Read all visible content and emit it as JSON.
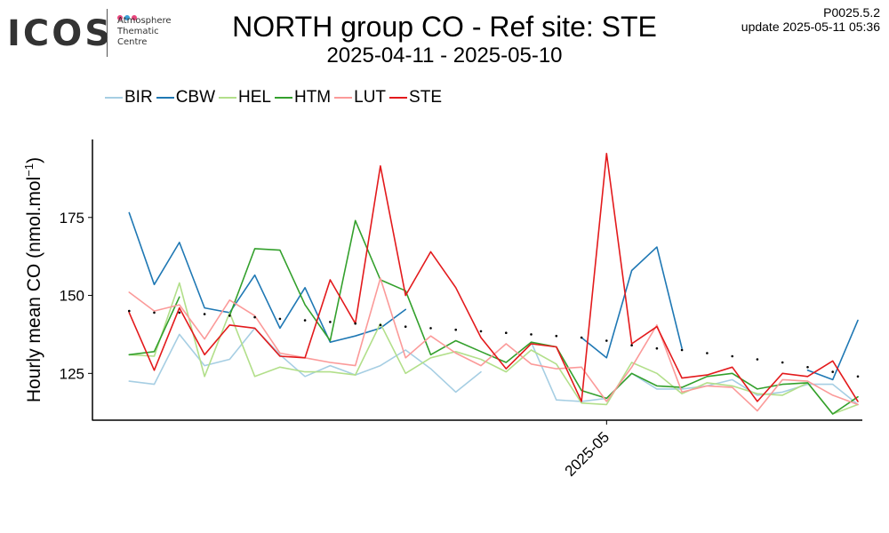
{
  "header": {
    "logo_text": "ICOS",
    "logo_subtitle": [
      "Atmosphere",
      "Thematic",
      "Centre"
    ],
    "logo_dot_colors": [
      "#e8457c",
      "#3aa0d8",
      "#e8457c"
    ],
    "title": "NORTH group CO - Ref site: STE",
    "subtitle": "2025-04-11 - 2025-05-10",
    "version": "P0025.5.2",
    "update": "update  2025-05-11 05:36"
  },
  "chart_data": {
    "type": "line",
    "title": "NORTH group CO - Ref site: STE",
    "subtitle": "2025-04-11 - 2025-05-10",
    "xlabel": "",
    "ylabel_main": "Hourly mean  CO (nmol.mol",
    "ylabel_sup": "−1",
    "ylabel_end": ")",
    "x_range": [
      "2025-04-11",
      "2025-05-11"
    ],
    "ylim": [
      110,
      200
    ],
    "yticks": [
      125,
      150,
      175
    ],
    "xticks": [
      {
        "date": "2025-05-01",
        "label": "2025-05"
      }
    ],
    "legend_position": "top-left",
    "grid": false,
    "series": [
      {
        "name": "BIR",
        "color": "#a6cee3",
        "points": [
          [
            "2025-04-12",
            122.5
          ],
          [
            "2025-04-13",
            121.5
          ],
          [
            "2025-04-14",
            137.5
          ],
          [
            "2025-04-15",
            127.5
          ],
          [
            "2025-04-16",
            129.5
          ],
          [
            "2025-04-17",
            139.5
          ],
          [
            "2025-04-18",
            131
          ],
          [
            "2025-04-19",
            124
          ],
          [
            "2025-04-20",
            127.5
          ],
          [
            "2025-04-21",
            124.5
          ],
          [
            "2025-04-22",
            127.5
          ],
          [
            "2025-04-23",
            132.5
          ],
          [
            "2025-04-24",
            126.5
          ],
          [
            "2025-04-25",
            119
          ],
          [
            "2025-04-26",
            125.5
          ],
          null,
          [
            "2025-04-28",
            135
          ],
          [
            "2025-04-29",
            116.5
          ],
          [
            "2025-04-30",
            116
          ],
          [
            "2025-05-01",
            117
          ],
          [
            "2025-05-02",
            125
          ],
          [
            "2025-05-03",
            120
          ],
          [
            "2025-05-04",
            120
          ],
          [
            "2025-05-05",
            121
          ],
          [
            "2025-05-06",
            123
          ],
          [
            "2025-05-07",
            118
          ],
          [
            "2025-05-08",
            119
          ],
          [
            "2025-05-09",
            121.5
          ],
          [
            "2025-05-10",
            121.5
          ],
          [
            "2025-05-11",
            115
          ]
        ]
      },
      {
        "name": "CBW",
        "color": "#1f78b4",
        "points": [
          [
            "2025-04-12",
            176.5
          ],
          [
            "2025-04-13",
            153.5
          ],
          [
            "2025-04-14",
            167
          ],
          [
            "2025-04-15",
            146
          ],
          [
            "2025-04-16",
            144.5
          ],
          [
            "2025-04-17",
            156.5
          ],
          [
            "2025-04-18",
            139.5
          ],
          [
            "2025-04-19",
            152.5
          ],
          [
            "2025-04-20",
            135
          ],
          [
            "2025-04-21",
            137
          ],
          [
            "2025-04-22",
            139.5
          ],
          [
            "2025-04-23",
            145.5
          ],
          null,
          null,
          null,
          null,
          null,
          null,
          [
            "2025-04-30",
            136.5
          ],
          [
            "2025-05-01",
            130
          ],
          [
            "2025-05-02",
            158
          ],
          [
            "2025-05-03",
            165.5
          ],
          [
            "2025-05-04",
            133
          ],
          null,
          null,
          null,
          null,
          null,
          [
            "2025-05-09",
            126
          ],
          [
            "2025-05-10",
            123
          ],
          [
            "2025-05-11",
            142
          ]
        ]
      },
      {
        "name": "HEL",
        "color": "#b2df8a",
        "points": [
          [
            "2025-04-12",
            131
          ],
          [
            "2025-04-13",
            130.5
          ],
          [
            "2025-04-14",
            154
          ],
          [
            "2025-04-15",
            124
          ],
          [
            "2025-04-16",
            144.5
          ],
          [
            "2025-04-17",
            124
          ],
          [
            "2025-04-18",
            127
          ],
          [
            "2025-04-19",
            125.5
          ],
          [
            "2025-04-20",
            125.5
          ],
          [
            "2025-04-21",
            124.5
          ],
          [
            "2025-04-22",
            141
          ],
          [
            "2025-04-23",
            125
          ],
          [
            "2025-04-24",
            130
          ],
          [
            "2025-04-25",
            132
          ],
          [
            "2025-04-26",
            129.5
          ],
          [
            "2025-04-27",
            125.5
          ],
          [
            "2025-04-28",
            132.5
          ],
          [
            "2025-04-29",
            128
          ],
          [
            "2025-04-30",
            115.5
          ],
          [
            "2025-05-01",
            115
          ],
          [
            "2025-05-02",
            128.5
          ],
          [
            "2025-05-03",
            125
          ],
          [
            "2025-05-04",
            118.5
          ],
          [
            "2025-05-05",
            122
          ],
          [
            "2025-05-06",
            121
          ],
          [
            "2025-05-07",
            118.5
          ],
          [
            "2025-05-08",
            118
          ],
          [
            "2025-05-09",
            122
          ],
          [
            "2025-05-10",
            112
          ],
          [
            "2025-05-11",
            115
          ]
        ]
      },
      {
        "name": "HTM",
        "color": "#33a02c",
        "points": [
          [
            "2025-04-12",
            131
          ],
          [
            "2025-04-13",
            132
          ],
          [
            "2025-04-14",
            149.5
          ],
          null,
          [
            "2025-04-16",
            143.5
          ],
          [
            "2025-04-17",
            165
          ],
          [
            "2025-04-18",
            164.5
          ],
          [
            "2025-04-19",
            147
          ],
          [
            "2025-04-20",
            135.5
          ],
          [
            "2025-04-21",
            174
          ],
          [
            "2025-04-22",
            155
          ],
          [
            "2025-04-23",
            151.5
          ],
          [
            "2025-04-24",
            131
          ],
          [
            "2025-04-25",
            135.5
          ],
          [
            "2025-04-26",
            132
          ],
          [
            "2025-04-27",
            128.5
          ],
          [
            "2025-04-28",
            135
          ],
          [
            "2025-04-29",
            133.5
          ],
          [
            "2025-04-30",
            119.5
          ],
          [
            "2025-05-01",
            117
          ],
          [
            "2025-05-02",
            125
          ],
          [
            "2025-05-03",
            121
          ],
          [
            "2025-05-04",
            120.5
          ],
          [
            "2025-05-05",
            124
          ],
          [
            "2025-05-06",
            125
          ],
          [
            "2025-05-07",
            120
          ],
          [
            "2025-05-08",
            121.5
          ],
          [
            "2025-05-09",
            122
          ],
          [
            "2025-05-10",
            112
          ],
          [
            "2025-05-11",
            117.5
          ]
        ]
      },
      {
        "name": "LUT",
        "color": "#fb9a99",
        "points": [
          [
            "2025-04-12",
            151
          ],
          [
            "2025-04-13",
            145
          ],
          [
            "2025-04-14",
            147
          ],
          [
            "2025-04-15",
            136
          ],
          [
            "2025-04-16",
            148.5
          ],
          [
            "2025-04-17",
            143.5
          ],
          [
            "2025-04-18",
            131.5
          ],
          [
            "2025-04-19",
            130
          ],
          [
            "2025-04-20",
            128.5
          ],
          [
            "2025-04-21",
            127.5
          ],
          [
            "2025-04-22",
            155.5
          ],
          [
            "2025-04-23",
            130
          ],
          [
            "2025-04-24",
            137
          ],
          [
            "2025-04-25",
            131.5
          ],
          [
            "2025-04-26",
            127.5
          ],
          [
            "2025-04-27",
            134.5
          ],
          [
            "2025-04-28",
            128
          ],
          [
            "2025-04-29",
            126.5
          ],
          [
            "2025-04-30",
            127
          ],
          [
            "2025-05-01",
            116
          ],
          [
            "2025-05-02",
            127
          ],
          [
            "2025-05-03",
            140.5
          ],
          [
            "2025-05-04",
            119
          ],
          [
            "2025-05-05",
            121
          ],
          [
            "2025-05-06",
            120.5
          ],
          [
            "2025-05-07",
            113
          ],
          [
            "2025-05-08",
            123
          ],
          [
            "2025-05-09",
            122.5
          ],
          [
            "2025-05-10",
            118
          ],
          [
            "2025-05-11",
            115
          ]
        ]
      },
      {
        "name": "STE",
        "color": "#e31a1c",
        "points": [
          [
            "2025-04-12",
            144.5
          ],
          [
            "2025-04-13",
            126
          ],
          [
            "2025-04-14",
            146
          ],
          [
            "2025-04-15",
            131
          ],
          [
            "2025-04-16",
            140.5
          ],
          [
            "2025-04-17",
            139.5
          ],
          [
            "2025-04-18",
            130.5
          ],
          [
            "2025-04-19",
            130
          ],
          [
            "2025-04-20",
            155
          ],
          [
            "2025-04-21",
            141
          ],
          [
            "2025-04-22",
            191.5
          ],
          [
            "2025-04-23",
            150
          ],
          [
            "2025-04-24",
            164
          ],
          [
            "2025-04-25",
            152.5
          ],
          [
            "2025-04-26",
            136.5
          ],
          [
            "2025-04-27",
            126.5
          ],
          [
            "2025-04-28",
            134.5
          ],
          [
            "2025-04-29",
            133.5
          ],
          [
            "2025-04-30",
            116
          ],
          [
            "2025-05-01",
            195.5
          ],
          [
            "2025-05-02",
            134.5
          ],
          [
            "2025-05-03",
            140
          ],
          [
            "2025-05-04",
            123.5
          ],
          [
            "2025-05-05",
            124.5
          ],
          [
            "2025-05-06",
            127
          ],
          [
            "2025-05-07",
            116
          ],
          [
            "2025-05-08",
            125
          ],
          [
            "2025-05-09",
            124
          ],
          [
            "2025-05-10",
            129
          ],
          [
            "2025-05-11",
            116
          ]
        ]
      }
    ],
    "reference_dots": {
      "color": "#000000",
      "points": [
        [
          "2025-04-12",
          145
        ],
        [
          "2025-04-13",
          144.5
        ],
        [
          "2025-04-14",
          144.5
        ],
        [
          "2025-04-15",
          144
        ],
        [
          "2025-04-16",
          143.5
        ],
        [
          "2025-04-17",
          143
        ],
        [
          "2025-04-18",
          142.5
        ],
        [
          "2025-04-19",
          142
        ],
        [
          "2025-04-20",
          141.5
        ],
        [
          "2025-04-21",
          141
        ],
        [
          "2025-04-22",
          140.5
        ],
        [
          "2025-04-23",
          140
        ],
        [
          "2025-04-24",
          139.5
        ],
        [
          "2025-04-25",
          139
        ],
        [
          "2025-04-26",
          138.5
        ],
        [
          "2025-04-27",
          138
        ],
        [
          "2025-04-28",
          137.5
        ],
        [
          "2025-04-29",
          137
        ],
        [
          "2025-04-30",
          136.5
        ],
        [
          "2025-05-01",
          135.5
        ],
        [
          "2025-05-02",
          134
        ],
        [
          "2025-05-03",
          133
        ],
        [
          "2025-05-04",
          132.5
        ],
        [
          "2025-05-05",
          131.5
        ],
        [
          "2025-05-06",
          130.5
        ],
        [
          "2025-05-07",
          129.5
        ],
        [
          "2025-05-08",
          128.5
        ],
        [
          "2025-05-09",
          127
        ],
        [
          "2025-05-10",
          125.5
        ],
        [
          "2025-05-11",
          124
        ]
      ]
    }
  }
}
